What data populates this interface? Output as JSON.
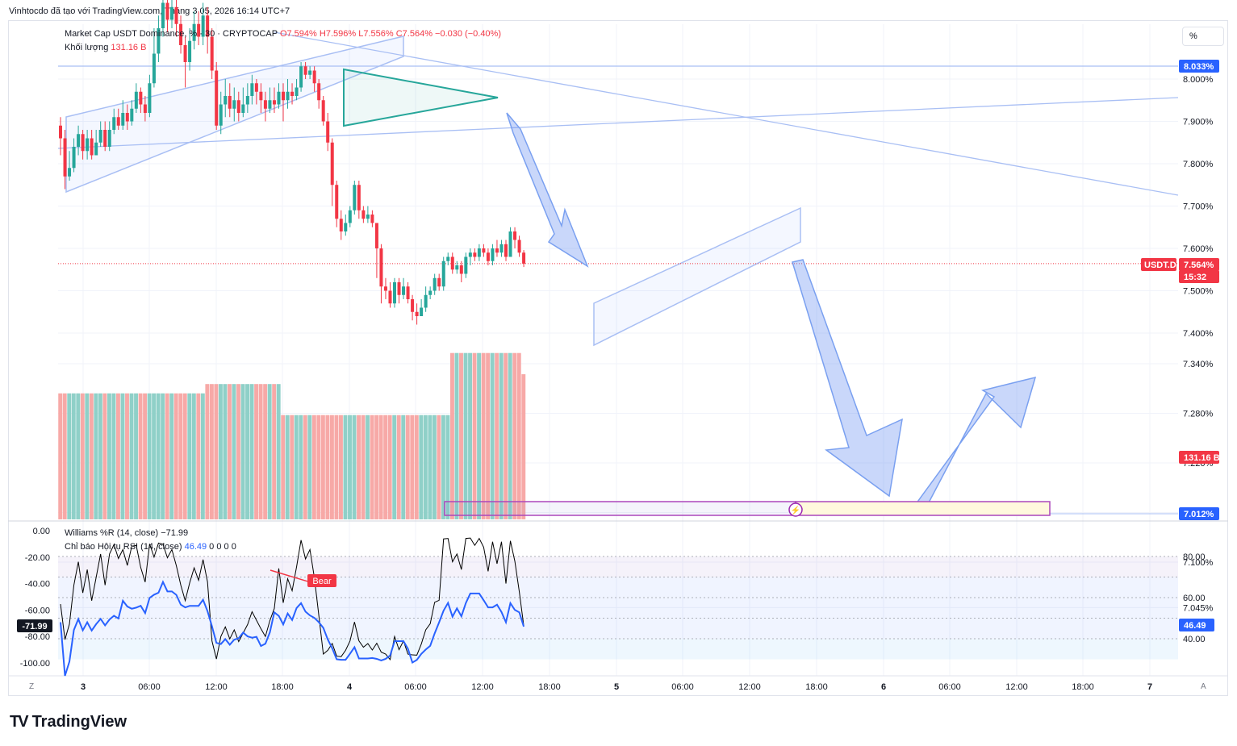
{
  "header": {
    "caption": "Vinhtocdo đã tạo với TradingView.com, Tháng 3 05, 2026 16:14 UTC+7"
  },
  "legend": {
    "symbol": "Market Cap USDT Dominance, % · 30 · CRYPTOCAP",
    "open": "O7.594%",
    "high": "H7.596%",
    "low": "L7.556%",
    "close": "C7.564%",
    "change": "−0.030 (−0.40%)",
    "volume_label": "Khối lượng",
    "volume_value": "131.16 B",
    "willr_label": "Williams %R (14, close)",
    "willr_value": "−71.99",
    "rsi_label": "Chỉ báo Hội tụ RSI (14, close)",
    "rsi_value": "46.49",
    "rsi_zeros": "0 0 0 0"
  },
  "scale_button": "%",
  "price_axis": {
    "ticks": [
      "8.000%",
      "7.900%",
      "7.800%",
      "7.700%",
      "7.600%",
      "7.500%",
      "7.400%",
      "7.340%",
      "7.280%",
      "7.220%",
      "7.160%",
      "7.100%",
      "7.045%"
    ],
    "tag_top": "8.033%",
    "tag_symbol": "USDT.D",
    "tag_price": "7.564%",
    "tag_timer": "15:32",
    "tag_volume": "131.16 B",
    "tag_bottom": "7.012%"
  },
  "willr_axis": {
    "ticks": [
      "0.00",
      "-20.00",
      "-40.00",
      "-60.00",
      "-80.00",
      "-100.00"
    ],
    "current": "-71.99"
  },
  "rsi_axis": {
    "ticks": [
      "80.00",
      "60.00",
      "40.00"
    ],
    "current": "46.49"
  },
  "badges": {
    "bear": "Bear"
  },
  "time_axis": {
    "labels": [
      "3",
      "06:00",
      "12:00",
      "18:00",
      "4",
      "06:00",
      "12:00",
      "18:00",
      "5",
      "06:00",
      "12:00",
      "18:00",
      "6",
      "06:00",
      "12:00",
      "18:00",
      "7"
    ],
    "left_corner": "Z",
    "right_corner": "A"
  },
  "footer": {
    "brand": "TradingView",
    "logo_mark": "TV"
  },
  "colors": {
    "up": "#26a69a",
    "down": "#f23645",
    "up_volume": "#8fd0c8",
    "down_volume": "#f7a9a7",
    "drawing_blue": "#a9bff4",
    "triangle": "#26a69a",
    "rsi_line": "#2962ff",
    "willr_line": "#000000",
    "zone_border": "#ab47bc"
  },
  "chart_data": [
    {
      "type": "candlestick",
      "title": "Market Cap USDT Dominance, % · 30 · CRYPTOCAP",
      "y_unit": "%",
      "ylim": [
        6.98,
        8.1
      ],
      "x_start": "3 00:00",
      "bar_interval": "30m",
      "candles": [
        [
          7.89,
          7.86,
          7.91,
          7.82
        ],
        [
          7.86,
          7.77,
          7.88,
          7.74
        ],
        [
          7.77,
          7.79,
          7.83,
          7.76
        ],
        [
          7.79,
          7.84,
          7.86,
          7.78
        ],
        [
          7.84,
          7.87,
          7.89,
          7.82
        ],
        [
          7.87,
          7.83,
          7.88,
          7.81
        ],
        [
          7.83,
          7.86,
          7.88,
          7.81
        ],
        [
          7.86,
          7.82,
          7.88,
          7.81
        ],
        [
          7.82,
          7.85,
          7.88,
          7.82
        ],
        [
          7.85,
          7.88,
          7.9,
          7.84
        ],
        [
          7.88,
          7.84,
          7.9,
          7.83
        ],
        [
          7.84,
          7.88,
          7.9,
          7.83
        ],
        [
          7.88,
          7.91,
          7.93,
          7.87
        ],
        [
          7.91,
          7.89,
          7.93,
          7.88
        ],
        [
          7.89,
          7.92,
          7.95,
          7.88
        ],
        [
          7.92,
          7.9,
          7.94,
          7.88
        ],
        [
          7.9,
          7.93,
          7.95,
          7.89
        ],
        [
          7.93,
          7.97,
          7.99,
          7.92
        ],
        [
          7.97,
          7.94,
          7.98,
          7.92
        ],
        [
          7.94,
          7.92,
          7.96,
          7.9
        ],
        [
          7.92,
          7.99,
          8.01,
          7.91
        ],
        [
          7.99,
          8.06,
          8.12,
          7.98
        ],
        [
          8.06,
          8.12,
          8.15,
          8.04
        ],
        [
          8.12,
          8.18,
          8.22,
          8.1
        ],
        [
          8.18,
          8.14,
          8.2,
          8.11
        ],
        [
          8.14,
          8.17,
          8.2,
          8.12
        ],
        [
          8.17,
          8.13,
          8.19,
          8.1
        ],
        [
          8.13,
          8.08,
          8.15,
          8.06
        ],
        [
          8.08,
          8.04,
          8.1,
          7.98
        ],
        [
          8.04,
          8.09,
          8.12,
          8.02
        ],
        [
          8.09,
          8.13,
          8.16,
          8.07
        ],
        [
          8.13,
          8.1,
          8.16,
          8.08
        ],
        [
          8.1,
          8.15,
          8.18,
          8.08
        ],
        [
          8.15,
          8.1,
          8.17,
          8.06
        ],
        [
          8.1,
          8.02,
          8.12,
          8.0
        ],
        [
          8.02,
          7.89,
          8.04,
          7.88
        ],
        [
          7.89,
          7.94,
          7.97,
          7.87
        ],
        [
          7.94,
          7.96,
          8.0,
          7.91
        ],
        [
          7.96,
          7.93,
          7.99,
          7.91
        ],
        [
          7.93,
          7.95,
          7.98,
          7.9
        ],
        [
          7.95,
          7.92,
          7.97,
          7.9
        ],
        [
          7.92,
          7.94,
          7.98,
          7.91
        ],
        [
          7.94,
          7.96,
          7.99,
          7.92
        ],
        [
          7.96,
          7.99,
          8.01,
          7.94
        ],
        [
          7.99,
          7.97,
          8.0,
          7.94
        ],
        [
          7.97,
          7.95,
          7.99,
          7.92
        ],
        [
          7.95,
          7.93,
          7.97,
          7.9
        ],
        [
          7.93,
          7.95,
          7.98,
          7.92
        ],
        [
          7.95,
          7.94,
          7.98,
          7.92
        ],
        [
          7.94,
          7.97,
          7.99,
          7.93
        ],
        [
          7.97,
          7.95,
          7.99,
          7.9
        ],
        [
          7.95,
          7.97,
          8.0,
          7.93
        ],
        [
          7.97,
          7.96,
          7.99,
          7.94
        ],
        [
          7.96,
          7.98,
          8.0,
          7.95
        ],
        [
          7.98,
          8.03,
          8.04,
          7.97
        ],
        [
          8.03,
          8.01,
          8.04,
          8.0
        ],
        [
          8.01,
          8.02,
          8.03,
          8.0
        ],
        [
          8.02,
          7.99,
          8.03,
          7.97
        ],
        [
          7.99,
          7.95,
          8.0,
          7.93
        ],
        [
          7.95,
          7.9,
          7.96,
          7.89
        ],
        [
          7.9,
          7.85,
          7.92,
          7.83
        ],
        [
          7.85,
          7.75,
          7.86,
          7.7
        ],
        [
          7.75,
          7.67,
          7.76,
          7.65
        ],
        [
          7.67,
          7.64,
          7.69,
          7.62
        ],
        [
          7.64,
          7.66,
          7.68,
          7.63
        ],
        [
          7.66,
          7.69,
          7.7,
          7.65
        ],
        [
          7.69,
          7.75,
          7.76,
          7.68
        ],
        [
          7.75,
          7.69,
          7.76,
          7.67
        ],
        [
          7.69,
          7.67,
          7.7,
          7.66
        ],
        [
          7.67,
          7.68,
          7.7,
          7.66
        ],
        [
          7.68,
          7.66,
          7.69,
          7.65
        ],
        [
          7.66,
          7.6,
          7.66,
          7.53
        ],
        [
          7.6,
          7.51,
          7.61,
          7.47
        ],
        [
          7.51,
          7.5,
          7.53,
          7.48
        ],
        [
          7.5,
          7.47,
          7.52,
          7.46
        ],
        [
          7.47,
          7.52,
          7.53,
          7.46
        ],
        [
          7.52,
          7.49,
          7.53,
          7.47
        ],
        [
          7.49,
          7.51,
          7.53,
          7.48
        ],
        [
          7.51,
          7.48,
          7.52,
          7.47
        ],
        [
          7.48,
          7.45,
          7.49,
          7.43
        ],
        [
          7.45,
          7.44,
          7.47,
          7.42
        ],
        [
          7.44,
          7.46,
          7.48,
          7.44
        ],
        [
          7.46,
          7.49,
          7.51,
          7.45
        ],
        [
          7.49,
          7.5,
          7.51,
          7.48
        ],
        [
          7.5,
          7.53,
          7.54,
          7.49
        ],
        [
          7.53,
          7.51,
          7.54,
          7.5
        ],
        [
          7.51,
          7.57,
          7.58,
          7.5
        ],
        [
          7.57,
          7.58,
          7.59,
          7.56
        ],
        [
          7.58,
          7.55,
          7.59,
          7.54
        ],
        [
          7.55,
          7.56,
          7.57,
          7.54
        ],
        [
          7.56,
          7.54,
          7.57,
          7.52
        ],
        [
          7.54,
          7.58,
          7.59,
          7.53
        ],
        [
          7.58,
          7.59,
          7.6,
          7.56
        ],
        [
          7.59,
          7.58,
          7.6,
          7.57
        ],
        [
          7.58,
          7.6,
          7.61,
          7.57
        ],
        [
          7.6,
          7.59,
          7.61,
          7.58
        ],
        [
          7.59,
          7.57,
          7.6,
          7.56
        ],
        [
          7.57,
          7.6,
          7.61,
          7.56
        ],
        [
          7.6,
          7.59,
          7.62,
          7.58
        ],
        [
          7.59,
          7.61,
          7.62,
          7.58
        ],
        [
          7.61,
          7.58,
          7.62,
          7.57
        ],
        [
          7.58,
          7.64,
          7.65,
          7.58
        ],
        [
          7.64,
          7.62,
          7.65,
          7.6
        ],
        [
          7.62,
          7.59,
          7.63,
          7.58
        ],
        [
          7.59,
          7.564,
          7.596,
          7.556
        ]
      ],
      "volume_unit": "B",
      "volume": [
        125,
        125,
        125,
        125,
        125,
        125,
        125,
        125,
        125,
        125,
        125,
        125,
        125,
        125,
        125,
        125,
        125,
        125,
        125,
        125,
        125,
        125,
        125,
        125,
        125,
        125,
        125,
        125,
        125,
        125,
        125,
        125,
        125,
        128,
        128,
        128,
        128,
        128,
        128,
        128,
        128,
        128,
        128,
        128,
        128,
        128,
        128,
        128,
        128,
        128,
        118,
        118,
        118,
        118,
        118,
        118,
        118,
        118,
        118,
        118,
        118,
        118,
        118,
        118,
        118,
        118,
        118,
        118,
        118,
        118,
        118,
        118,
        118,
        118,
        118,
        118,
        118,
        118,
        118,
        118,
        118,
        118,
        118,
        118,
        118,
        118,
        118,
        118,
        138,
        138,
        138,
        138,
        138,
        138,
        138,
        138,
        138,
        138,
        138,
        138,
        138,
        138,
        138,
        138,
        131.16
      ],
      "levels": {
        "last": 7.564,
        "top_tag": 8.033,
        "bottom_tag": 7.012
      }
    },
    {
      "type": "line",
      "title": "Williams %R (14, close)",
      "ylim": [
        -100,
        0
      ],
      "last": -71.99
    },
    {
      "type": "line",
      "title": "Chỉ báo Hội tụ RSI (14, close)",
      "ylim": [
        30,
        80
      ],
      "bands": [
        40,
        50,
        60,
        70,
        80
      ],
      "last": 46.49
    }
  ]
}
